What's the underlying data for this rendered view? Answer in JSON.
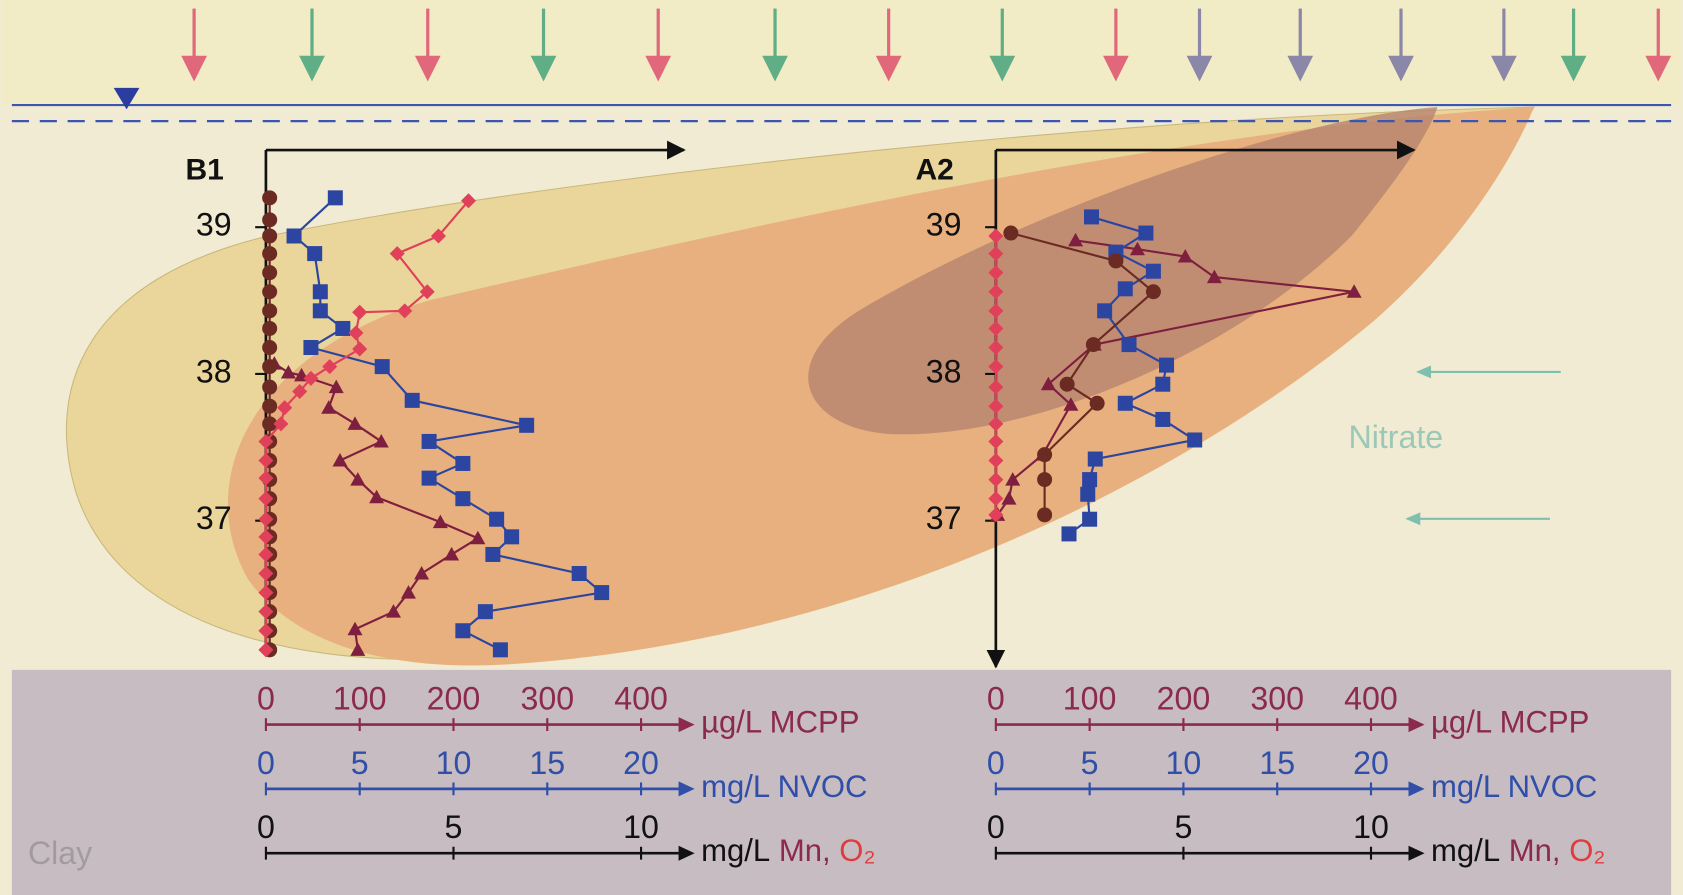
{
  "chart_data": [
    {
      "type": "profile",
      "title": "B1",
      "ylim": [
        36.1,
        39.5
      ],
      "yticks": [
        37,
        38,
        39
      ],
      "x_axes": [
        {
          "label": [
            {
              "text": "µg/L MCPP",
              "color": "#8b2a4a"
            }
          ],
          "color": "#8b2a4a",
          "xlim": [
            0,
            400
          ],
          "xticks": [
            0,
            100,
            200,
            300,
            400
          ],
          "series": [
            {
              "color": "#7e1f3f",
              "marker": "triangle",
              "values": [
                9,
                24,
                38,
                75,
                67,
                95,
                123,
                79,
                98,
                118,
                186,
                226,
                198,
                166,
                152,
                136,
                95,
                98
              ],
              "depth": [
                38.07,
                38.01,
                37.99,
                37.91,
                37.77,
                37.66,
                37.54,
                37.41,
                37.28,
                37.16,
                36.99,
                36.88,
                36.77,
                36.64,
                36.51,
                36.38,
                36.26,
                36.12
              ]
            }
          ]
        },
        {
          "label": [
            {
              "text": "mg/L NVOC",
              "color": "#2f4fa8"
            }
          ],
          "color": "#2f4fa8",
          "xlim": [
            0,
            20
          ],
          "xticks": [
            0,
            5,
            10,
            15,
            20
          ],
          "series": [
            {
              "color": "#2b45a0",
              "marker": "square",
              "values": [
                3.7,
                1.5,
                2.6,
                2.9,
                2.9,
                4.1,
                2.4,
                6.2,
                7.8,
                13.9,
                8.7,
                10.5,
                8.7,
                10.5,
                12.3,
                13.1,
                12.1,
                16.7,
                17.9,
                11.7,
                10.5,
                12.5
              ],
              "depth": [
                39.2,
                38.94,
                38.82,
                38.56,
                38.43,
                38.31,
                38.18,
                38.05,
                37.82,
                37.65,
                37.54,
                37.39,
                37.29,
                37.15,
                37.01,
                36.89,
                36.77,
                36.64,
                36.51,
                36.38,
                36.25,
                36.12
              ]
            }
          ]
        },
        {
          "label": [
            {
              "text": "mg/L",
              "color": "#111111"
            },
            {
              "text": "Mn,",
              "color": "#8b2a4a"
            },
            {
              "text": "O₂",
              "color": "#e03c3c"
            }
          ],
          "color": "#111111",
          "xlim": [
            0,
            10
          ],
          "xticks": [
            0,
            5,
            10
          ],
          "series": [
            {
              "color": "#6b2a22",
              "marker": "circle",
              "values": [
                0.1,
                0.1,
                0.1,
                0.1,
                0.1,
                0.1,
                0.1,
                0.1,
                0.1,
                0.1,
                0.1,
                0.1,
                0.1,
                0.1,
                0.1,
                0.1,
                0.1,
                0.1,
                0.1,
                0.1,
                0.1,
                0.1,
                0.1,
                0.1,
                0.1
              ],
              "depth": [
                39.2,
                39.05,
                38.94,
                38.82,
                38.69,
                38.56,
                38.43,
                38.31,
                38.18,
                38.05,
                37.91,
                37.78,
                37.66,
                37.54,
                37.41,
                37.28,
                37.15,
                37.01,
                36.89,
                36.77,
                36.64,
                36.51,
                36.38,
                36.25,
                36.12
              ]
            },
            {
              "color": "#e0405a",
              "marker": "diamond",
              "values": [
                5.4,
                4.6,
                3.5,
                4.3,
                3.7,
                2.5,
                2.4,
                2.5,
                1.7,
                1.2,
                0.9,
                0.5,
                0.4,
                0,
                0,
                0,
                0,
                0,
                0,
                0,
                0,
                0,
                0,
                0,
                0
              ],
              "depth": [
                39.18,
                38.94,
                38.82,
                38.56,
                38.43,
                38.42,
                38.28,
                38.17,
                38.05,
                37.97,
                37.88,
                37.77,
                37.66,
                37.54,
                37.41,
                37.29,
                37.15,
                37.01,
                36.89,
                36.77,
                36.64,
                36.51,
                36.38,
                36.25,
                36.12
              ]
            }
          ]
        }
      ]
    },
    {
      "type": "profile",
      "title": "A2",
      "ylim": [
        36.1,
        39.5
      ],
      "yticks": [
        37,
        38,
        39
      ],
      "x_axes": [
        {
          "label": [
            {
              "text": "µg/L MCPP",
              "color": "#8b2a4a"
            }
          ],
          "color": "#8b2a4a",
          "xlim": [
            0,
            400
          ],
          "xticks": [
            0,
            100,
            200,
            300,
            400
          ],
          "series": [
            {
              "color": "#7e1f3f",
              "marker": "triangle",
              "values": [
                85,
                151,
                202,
                233,
                382,
                105,
                56,
                80,
                50,
                18,
                14,
                2
              ],
              "depth": [
                38.91,
                38.85,
                38.8,
                38.66,
                38.56,
                38.2,
                37.93,
                37.79,
                37.45,
                37.28,
                37.15,
                37.04
              ]
            }
          ]
        },
        {
          "label": [
            {
              "text": "mg/L NVOC",
              "color": "#2f4fa8"
            }
          ],
          "color": "#2f4fa8",
          "xlim": [
            0,
            20
          ],
          "xticks": [
            0,
            5,
            10,
            15,
            20
          ],
          "series": [
            {
              "color": "#2b45a0",
              "marker": "square",
              "values": [
                5.1,
                8,
                6.4,
                8.4,
                6.9,
                5.8,
                7.1,
                9.1,
                8.9,
                6.9,
                8.9,
                10.6,
                5.3,
                5,
                4.9,
                5,
                3.9
              ],
              "depth": [
                39.07,
                38.96,
                38.83,
                38.7,
                38.58,
                38.43,
                38.2,
                38.06,
                37.93,
                37.8,
                37.69,
                37.55,
                37.42,
                37.28,
                37.18,
                37.01,
                36.91
              ]
            }
          ]
        },
        {
          "label": [
            {
              "text": "mg/L",
              "color": "#111111"
            },
            {
              "text": "Mn,",
              "color": "#8b2a4a"
            },
            {
              "text": "O₂",
              "color": "#e03c3c"
            }
          ],
          "color": "#111111",
          "xlim": [
            0,
            10
          ],
          "xticks": [
            0,
            5,
            10
          ],
          "series": [
            {
              "color": "#6b2a22",
              "marker": "circle",
              "values": [
                0.4,
                3.2,
                4.2,
                2.6,
                1.9,
                2.7,
                1.3,
                1.3,
                1.3
              ],
              "depth": [
                38.96,
                38.77,
                38.56,
                38.2,
                37.93,
                37.8,
                37.45,
                37.28,
                37.04
              ]
            },
            {
              "color": "#e0405a",
              "marker": "diamond",
              "values": [
                0,
                0,
                0,
                0,
                0,
                0,
                0,
                0,
                0,
                0,
                0,
                0,
                0,
                0,
                0,
                0
              ],
              "depth": [
                38.94,
                38.82,
                38.69,
                38.56,
                38.43,
                38.31,
                38.18,
                38.05,
                37.91,
                37.78,
                37.66,
                37.54,
                37.41,
                37.28,
                37.15,
                37.04
              ]
            }
          ]
        }
      ]
    }
  ],
  "annotations": {
    "nitrate": "Nitrate",
    "clay": "Clay"
  }
}
